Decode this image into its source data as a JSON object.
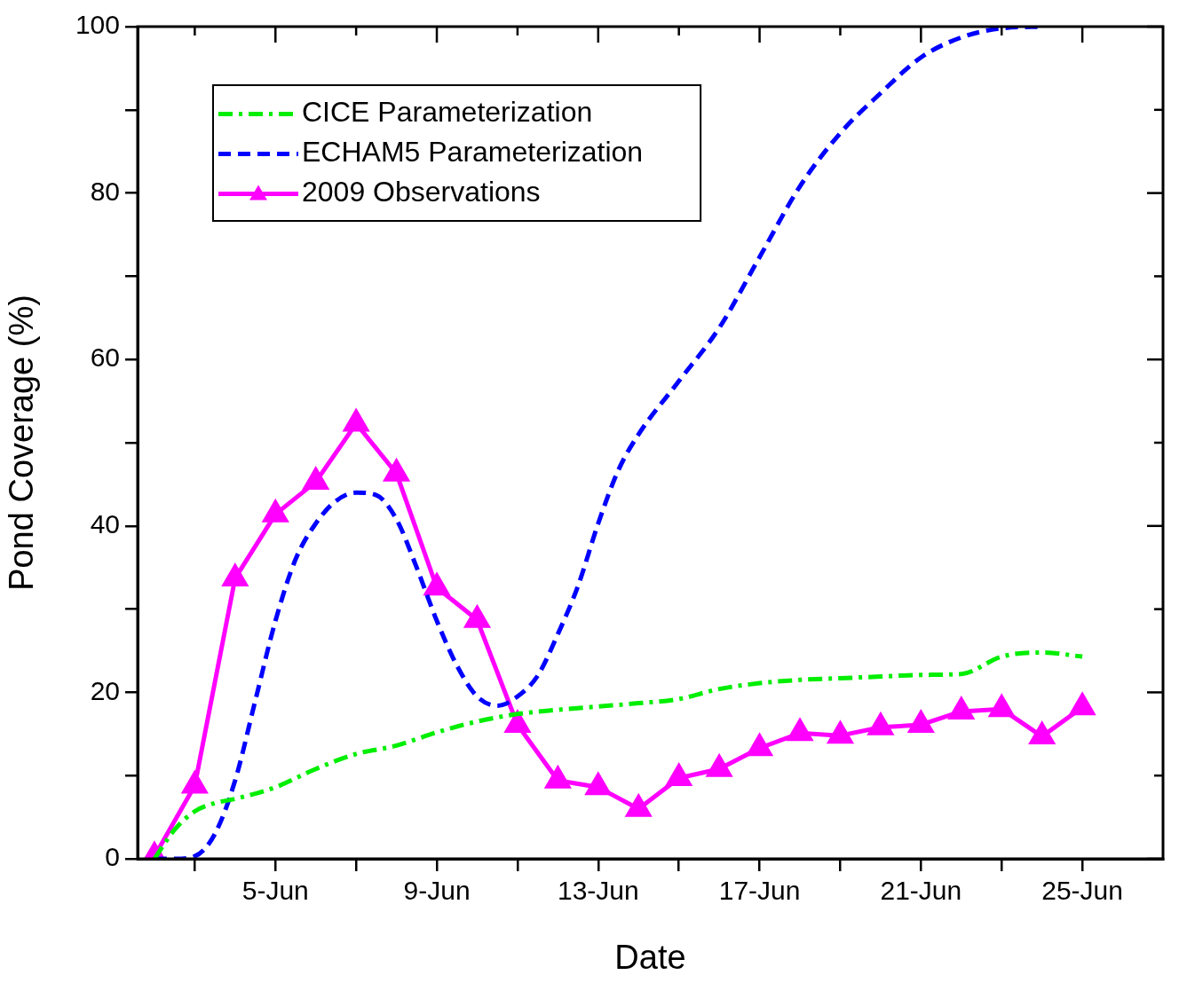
{
  "chart_data": {
    "type": "line",
    "xlabel": "Date",
    "ylabel": "Pond Coverage (%)",
    "xlim": [
      "--06-01T14:00",
      "--06-27"
    ],
    "ylim": [
      0,
      100
    ],
    "xticks": [
      {
        "value": "--06-03",
        "label": null
      },
      {
        "value": "--06-05",
        "label": "5-Jun"
      },
      {
        "value": "--06-07",
        "label": null
      },
      {
        "value": "--06-09",
        "label": "9-Jun"
      },
      {
        "value": "--06-11",
        "label": null
      },
      {
        "value": "--06-13",
        "label": "13-Jun"
      },
      {
        "value": "--06-15",
        "label": null
      },
      {
        "value": "--06-17",
        "label": "17-Jun"
      },
      {
        "value": "--06-19",
        "label": null
      },
      {
        "value": "--06-21",
        "label": "21-Jun"
      },
      {
        "value": "--06-23",
        "label": null
      },
      {
        "value": "--06-25",
        "label": "25-Jun"
      }
    ],
    "yticks": [
      0,
      {
        "value": 10,
        "label": null
      },
      20,
      {
        "value": 30,
        "label": null
      },
      40,
      {
        "value": 50,
        "label": null
      },
      60,
      {
        "value": 70,
        "label": null
      },
      80,
      {
        "value": 90,
        "label": null
      },
      100
    ],
    "grid": false,
    "legend": "top left",
    "series": [
      {
        "name": "CICE Parameterization",
        "color": "#00ee00",
        "line_style": "dashdot",
        "marker": "none",
        "x": [
          "--06-02",
          "--06-02T12:00",
          "--06-03",
          "--06-03T12:00",
          "--06-04",
          "--06-05",
          "--06-06",
          "--06-07",
          "--06-08",
          "--06-09",
          "--06-10",
          "--06-11",
          "--06-12",
          "--06-13",
          "--06-14",
          "--06-15",
          "--06-16",
          "--06-17",
          "--06-18",
          "--06-19",
          "--06-20",
          "--06-21",
          "--06-22",
          "--06-23",
          "--06-24",
          "--06-25"
        ],
        "values": [
          0,
          3.5,
          5.7,
          6.7,
          7.2,
          8.6,
          10.8,
          12.6,
          13.6,
          15.2,
          16.5,
          17.4,
          17.9,
          18.3,
          18.7,
          19.2,
          20.4,
          21.1,
          21.5,
          21.7,
          21.9,
          22.1,
          22.2,
          24.3,
          24.8,
          24.3
        ]
      },
      {
        "name": "ECHAM5 Parameterization",
        "color": "#0000ff",
        "line_style": "dashed",
        "marker": "none",
        "x": [
          "--06-02",
          "--06-02T12:00",
          "--06-03",
          "--06-03T12:00",
          "--06-04",
          "--06-04T12:00",
          "--06-05",
          "--06-05T12:00",
          "--06-06",
          "--06-06T12:00",
          "--06-07",
          "--06-07T12:00",
          "--06-08",
          "--06-08T12:00",
          "--06-09",
          "--06-09T12:00",
          "--06-10",
          "--06-10T12:00",
          "--06-11",
          "--06-11T12:00",
          "--06-12",
          "--06-12T12:00",
          "--06-13",
          "--06-13T12:00",
          "--06-14",
          "--06-15",
          "--06-16",
          "--06-17",
          "--06-18",
          "--06-19",
          "--06-20",
          "--06-21",
          "--06-22",
          "--06-23",
          "--06-24"
        ],
        "values": [
          0,
          0,
          0.3,
          3,
          9.4,
          19,
          28.6,
          36,
          40.3,
          43,
          44,
          43.7,
          40.8,
          35,
          28.6,
          23.2,
          19.5,
          18.4,
          19.5,
          22,
          27,
          32.8,
          40.3,
          46.7,
          51,
          57.4,
          63.8,
          72.3,
          80.8,
          87.2,
          92,
          96.3,
          98.7,
          99.8,
          100
        ]
      },
      {
        "name": "2009 Observations",
        "color": "#ff00ff",
        "line_style": "solid",
        "marker": "triangle",
        "x": [
          "--06-02",
          "--06-03",
          "--06-04",
          "--06-05",
          "--06-06",
          "--06-07",
          "--06-08",
          "--06-09",
          "--06-10",
          "--06-11",
          "--06-12",
          "--06-13",
          "--06-14",
          "--06-15",
          "--06-16",
          "--06-17",
          "--06-18",
          "--06-19",
          "--06-20",
          "--06-21",
          "--06-22",
          "--06-23",
          "--06-24",
          "--06-25"
        ],
        "values": [
          0.3,
          8.8,
          33.7,
          41.4,
          45.3,
          52.3,
          46.3,
          32.6,
          28.7,
          16.1,
          9.4,
          8.6,
          6,
          9.7,
          10.8,
          13.3,
          15.1,
          14.8,
          15.8,
          16.1,
          17.7,
          18,
          14.7,
          18.2
        ]
      }
    ]
  }
}
